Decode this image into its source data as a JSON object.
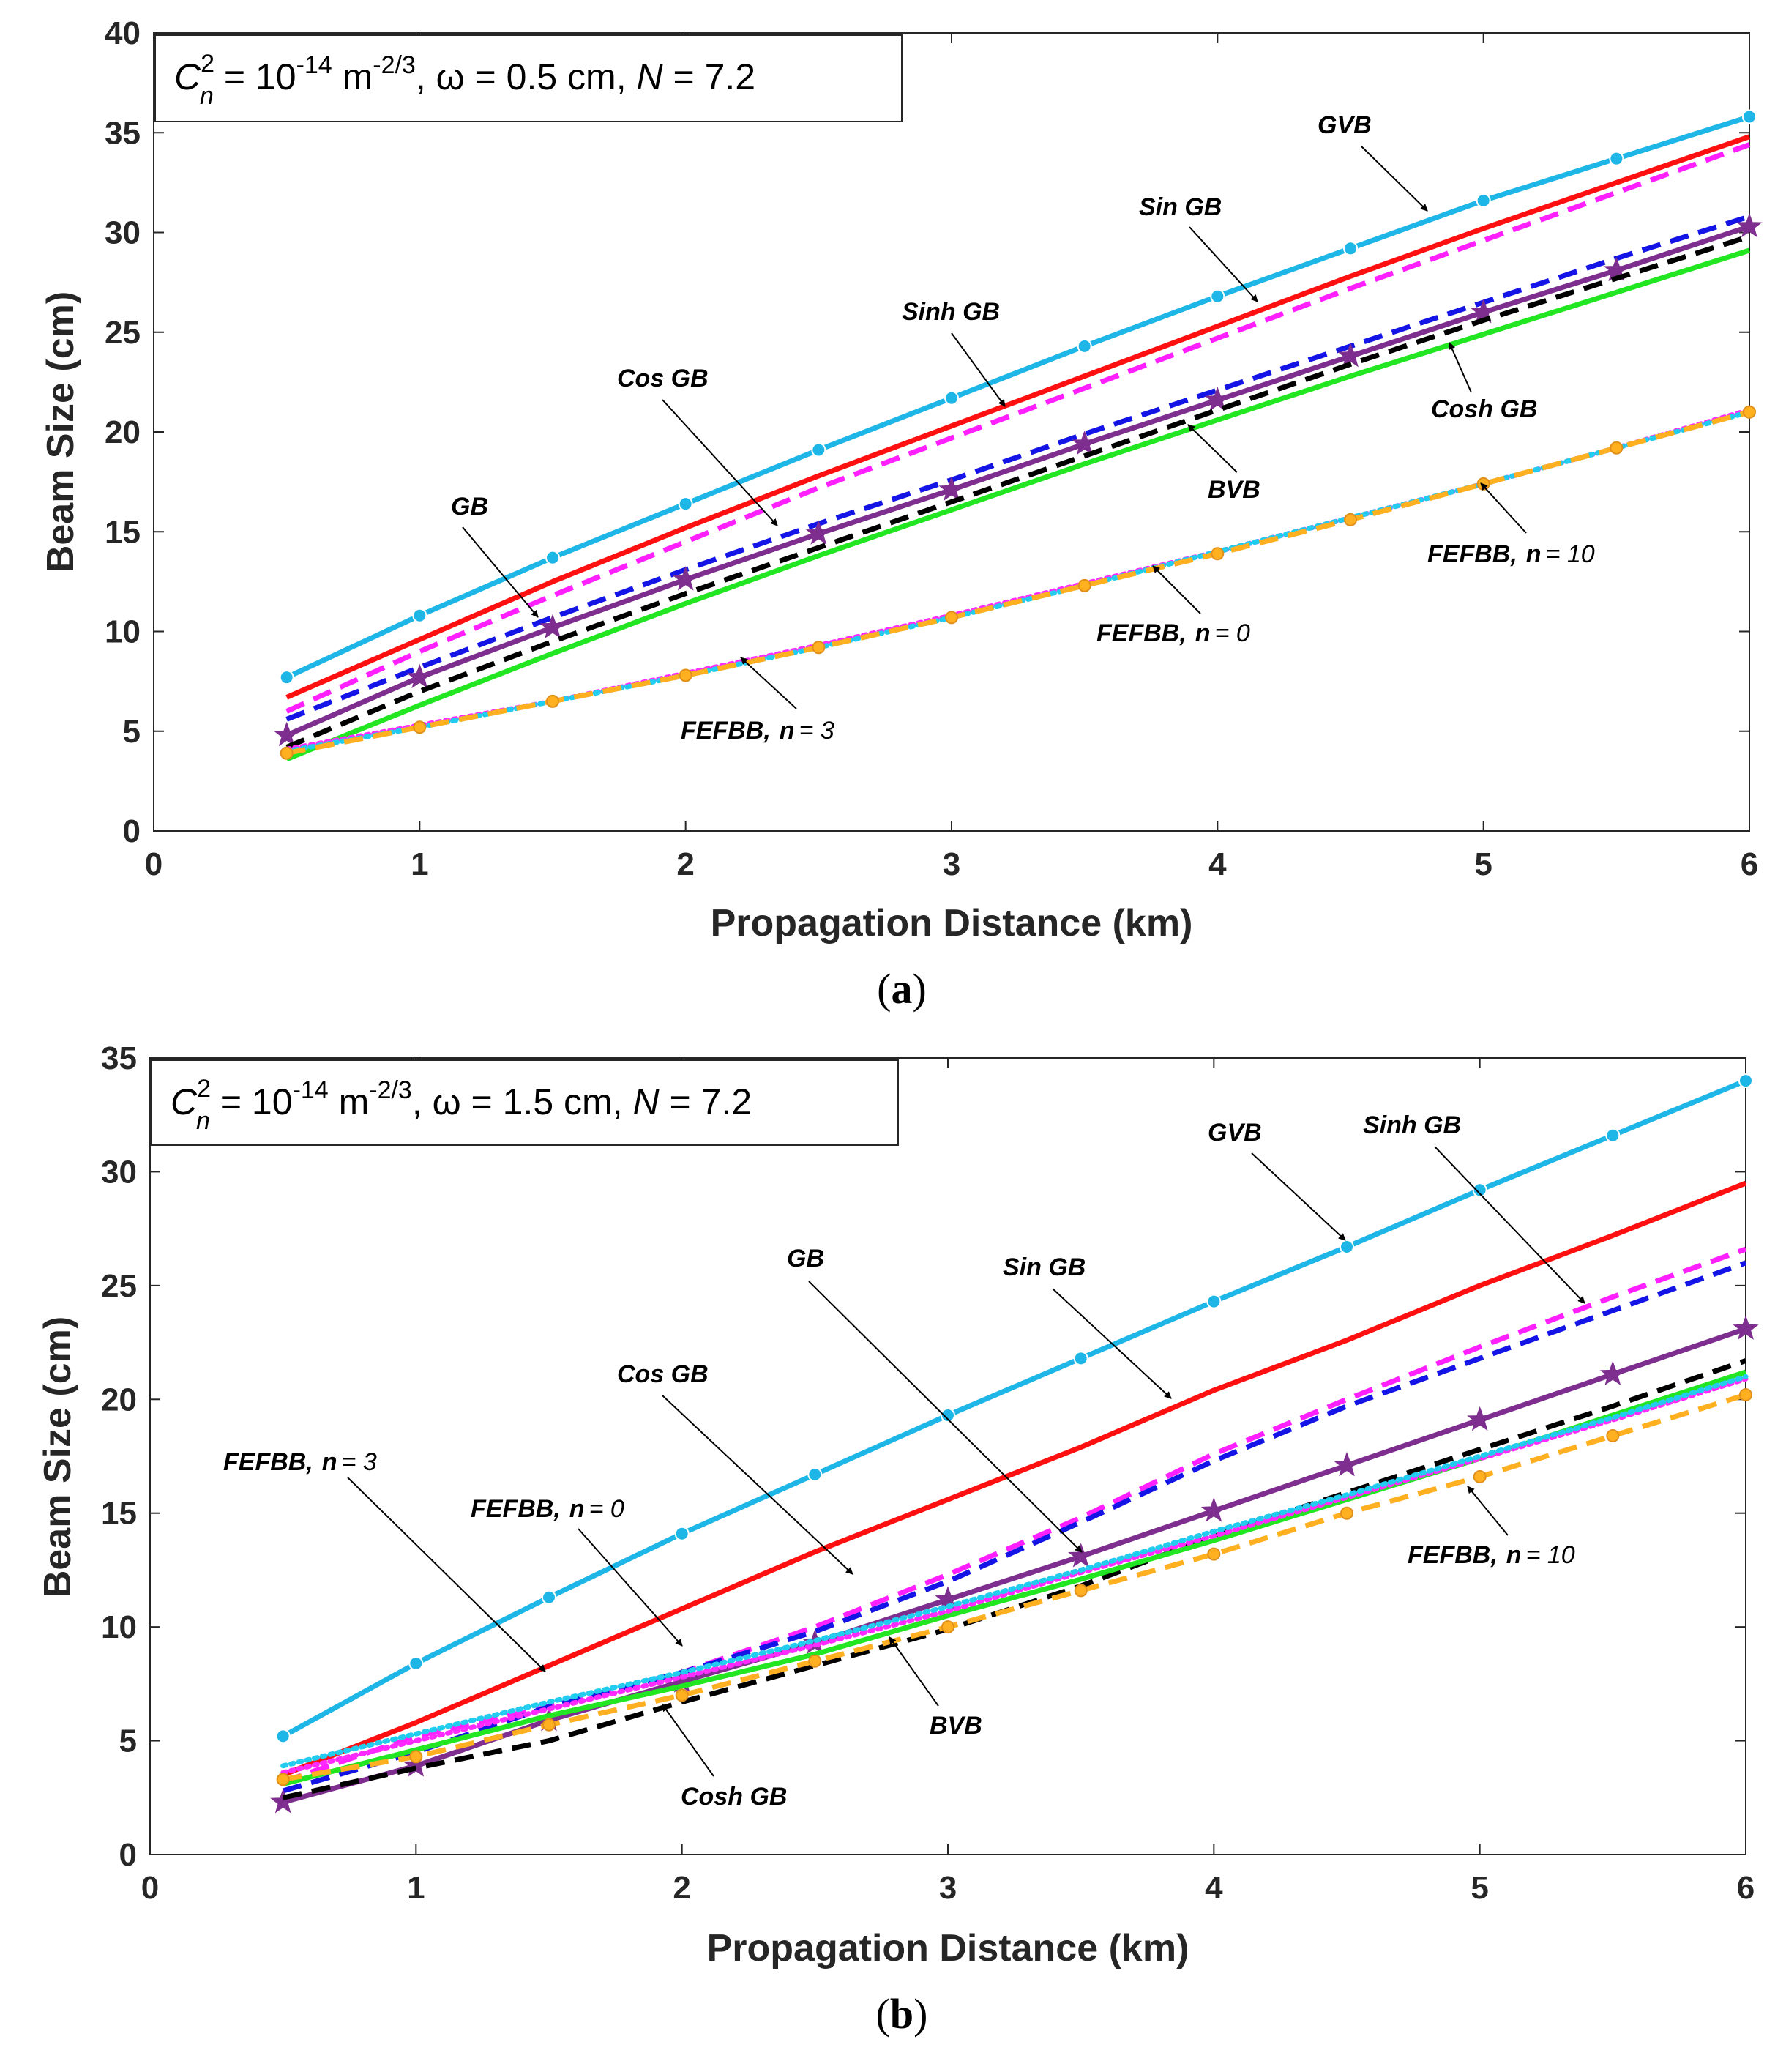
{
  "chart_data": [
    {
      "type": "line",
      "panel": "a",
      "caption": "a",
      "xlabel": "Propagation Distance (km)",
      "ylabel": "Beam Size (cm)",
      "xlim": [
        0,
        6
      ],
      "ylim": [
        0,
        40
      ],
      "xticks": [
        0,
        1,
        2,
        3,
        4,
        5,
        6
      ],
      "yticks": [
        0,
        5,
        10,
        15,
        20,
        25,
        30,
        35,
        40
      ],
      "x": [
        0.5,
        1,
        1.5,
        2,
        2.5,
        3,
        3.5,
        4,
        4.5,
        5,
        5.5,
        6
      ],
      "params": {
        "cn_symbol": "C",
        "cn_sup": "2",
        "cn_sub": "n",
        "eq1": " = 10",
        "exp1": "-14",
        "unit": " m",
        "exp2": "-2/3",
        "omega_text": ", ω = 0.5 cm, ",
        "n_symbol": "N",
        "n_value": " = 7.2"
      },
      "series": [
        {
          "name": "GVB",
          "color": "#1EB6E6",
          "style": "solid",
          "marker": "circle",
          "values": [
            7.7,
            10.8,
            13.7,
            16.4,
            19.1,
            21.7,
            24.3,
            26.8,
            29.2,
            31.6,
            33.7,
            35.8
          ]
        },
        {
          "name": "Sin GB",
          "color": "#FF1010",
          "style": "solid",
          "marker": "none",
          "values": [
            6.7,
            9.6,
            12.5,
            15.2,
            17.8,
            20.3,
            22.8,
            25.3,
            27.8,
            30.2,
            32.5,
            34.8
          ]
        },
        {
          "name": "Sinh GB",
          "color": "#FF1FFF",
          "style": "dashed",
          "marker": "none",
          "values": [
            6.0,
            9.0,
            11.8,
            14.5,
            17.2,
            19.7,
            22.2,
            24.7,
            27.2,
            29.6,
            32.0,
            34.4
          ]
        },
        {
          "name": "Cos GB",
          "color": "#1414E6",
          "style": "dashed",
          "marker": "none",
          "values": [
            5.6,
            8.2,
            10.7,
            13.1,
            15.4,
            17.6,
            19.9,
            22.1,
            24.3,
            26.5,
            28.7,
            30.8
          ]
        },
        {
          "name": "BVB",
          "color": "#7D2E8E",
          "style": "solid",
          "marker": "star",
          "values": [
            4.8,
            7.7,
            10.2,
            12.6,
            14.9,
            17.1,
            19.4,
            21.6,
            23.8,
            26.0,
            28.1,
            30.3
          ]
        },
        {
          "name": "GB",
          "color": "#000000",
          "style": "dashed",
          "marker": "none",
          "values": [
            4.2,
            7.0,
            9.5,
            11.9,
            14.2,
            16.5,
            18.8,
            21.1,
            23.4,
            25.6,
            27.7,
            29.8
          ]
        },
        {
          "name": "Cosh GB",
          "color": "#22E622",
          "style": "solid",
          "marker": "none",
          "values": [
            3.6,
            6.3,
            8.9,
            11.4,
            13.8,
            16.1,
            18.4,
            20.6,
            22.8,
            24.9,
            27.0,
            29.1
          ]
        },
        {
          "name": "FEFBB, n = 0",
          "color": "#FF2AFF",
          "style": "dotted",
          "marker": "none",
          "values": [
            4.1,
            5.3,
            6.5,
            7.9,
            9.3,
            10.8,
            12.4,
            14.0,
            15.7,
            17.4,
            19.2,
            21.1
          ]
        },
        {
          "name": "FEFBB, n = 3",
          "color": "#22CCEE",
          "style": "dotted",
          "marker": "none",
          "values": [
            4.0,
            5.2,
            6.5,
            7.8,
            9.2,
            10.7,
            12.3,
            14.0,
            15.7,
            17.4,
            19.2,
            21.0
          ]
        },
        {
          "name": "FEFBB, n = 10",
          "color": "#FFB020",
          "style": "dashed",
          "marker": "circle",
          "values": [
            3.9,
            5.2,
            6.5,
            7.8,
            9.2,
            10.7,
            12.3,
            13.9,
            15.6,
            17.4,
            19.2,
            21.0
          ]
        }
      ],
      "annotations": [
        {
          "text": "GVB",
          "n": ""
        },
        {
          "text": "Sin GB",
          "n": ""
        },
        {
          "text": "Sinh GB",
          "n": ""
        },
        {
          "text": "Cos GB",
          "n": ""
        },
        {
          "text": "GB",
          "n": ""
        },
        {
          "text": "Cosh GB",
          "n": ""
        },
        {
          "text": "BVB",
          "n": ""
        },
        {
          "text": "FEFBB,",
          "n": "10"
        },
        {
          "text": "FEFBB,",
          "n": "0"
        },
        {
          "text": "FEFBB,",
          "n": "3"
        }
      ]
    },
    {
      "type": "line",
      "panel": "b",
      "caption": "b",
      "xlabel": "Propagation Distance (km)",
      "ylabel": "Beam Size (cm)",
      "xlim": [
        0,
        6
      ],
      "ylim": [
        0,
        35
      ],
      "xticks": [
        0,
        1,
        2,
        3,
        4,
        5,
        6
      ],
      "yticks": [
        0,
        5,
        10,
        15,
        20,
        25,
        30,
        35
      ],
      "x": [
        0.5,
        1,
        1.5,
        2,
        2.5,
        3,
        3.5,
        4,
        4.5,
        5,
        5.5,
        6
      ],
      "params": {
        "cn_symbol": "C",
        "cn_sup": "2",
        "cn_sub": "n",
        "eq1": " = 10",
        "exp1": "-14",
        "unit": " m",
        "exp2": "-2/3",
        "omega_text": ", ω = 1.5 cm, ",
        "n_symbol": "N",
        "n_value": " = 7.2"
      },
      "series": [
        {
          "name": "GVB",
          "color": "#1EB6E6",
          "style": "solid",
          "marker": "circle",
          "values": [
            5.2,
            8.4,
            11.3,
            14.1,
            16.7,
            19.3,
            21.8,
            24.3,
            26.7,
            29.2,
            31.6,
            34.0
          ]
        },
        {
          "name": "Sin GB",
          "color": "#FF1010",
          "style": "solid",
          "marker": "none",
          "values": [
            3.5,
            5.8,
            8.3,
            10.8,
            13.3,
            15.6,
            17.9,
            20.4,
            22.6,
            25.0,
            27.2,
            29.5
          ]
        },
        {
          "name": "Sinh GB",
          "color": "#FF1FFF",
          "style": "dashed",
          "marker": "none",
          "values": [
            3.2,
            5.2,
            6.5,
            8.0,
            10.0,
            12.3,
            14.8,
            17.6,
            20.0,
            22.3,
            24.5,
            26.6
          ]
        },
        {
          "name": "Cos GB",
          "color": "#1414E6",
          "style": "dashed",
          "marker": "none",
          "values": [
            2.8,
            4.5,
            6.5,
            8.0,
            9.8,
            12.0,
            14.6,
            17.3,
            19.7,
            21.8,
            23.9,
            26.0
          ]
        },
        {
          "name": "BVB",
          "color": "#7D2E8E",
          "style": "solid",
          "marker": "star",
          "values": [
            2.3,
            3.9,
            5.9,
            7.6,
            9.3,
            11.2,
            13.1,
            15.1,
            17.1,
            19.1,
            21.1,
            23.1
          ]
        },
        {
          "name": "GB",
          "color": "#000000",
          "style": "dashed",
          "marker": "none",
          "values": [
            2.5,
            3.8,
            5.0,
            6.7,
            8.3,
            9.9,
            11.8,
            14.0,
            15.9,
            17.8,
            19.7,
            21.7
          ]
        },
        {
          "name": "Cosh GB",
          "color": "#22E622",
          "style": "solid",
          "marker": "none",
          "values": [
            3.1,
            4.6,
            6.1,
            7.4,
            8.8,
            10.5,
            12.1,
            13.8,
            15.6,
            17.4,
            19.3,
            21.2
          ]
        },
        {
          "name": "FEFBB, n = 0",
          "color": "#FF2AFF",
          "style": "dotted",
          "marker": "none",
          "values": [
            3.6,
            5.0,
            6.4,
            7.8,
            9.2,
            10.7,
            12.4,
            14.0,
            15.7,
            17.4,
            19.1,
            20.9
          ]
        },
        {
          "name": "FEFBB, n = 3",
          "color": "#22CCEE",
          "style": "dotted",
          "marker": "none",
          "values": [
            3.9,
            5.3,
            6.7,
            8.0,
            9.4,
            10.9,
            12.5,
            14.2,
            15.8,
            17.5,
            19.2,
            21.0
          ]
        },
        {
          "name": "FEFBB, n = 10",
          "color": "#FFB020",
          "style": "dashed",
          "marker": "circle",
          "values": [
            3.3,
            4.3,
            5.7,
            7.0,
            8.5,
            10.0,
            11.6,
            13.2,
            15.0,
            16.6,
            18.4,
            20.2
          ]
        }
      ],
      "annotations": [
        {
          "text": "GVB",
          "n": ""
        },
        {
          "text": "Sinh GB",
          "n": ""
        },
        {
          "text": "Sin GB",
          "n": ""
        },
        {
          "text": "GB",
          "n": ""
        },
        {
          "text": "Cos GB",
          "n": ""
        },
        {
          "text": "FEFBB,",
          "n": "3"
        },
        {
          "text": "FEFBB,",
          "n": "0"
        },
        {
          "text": "FEFBB,",
          "n": "10"
        },
        {
          "text": "BVB",
          "n": ""
        },
        {
          "text": "Cosh GB",
          "n": ""
        }
      ]
    }
  ]
}
